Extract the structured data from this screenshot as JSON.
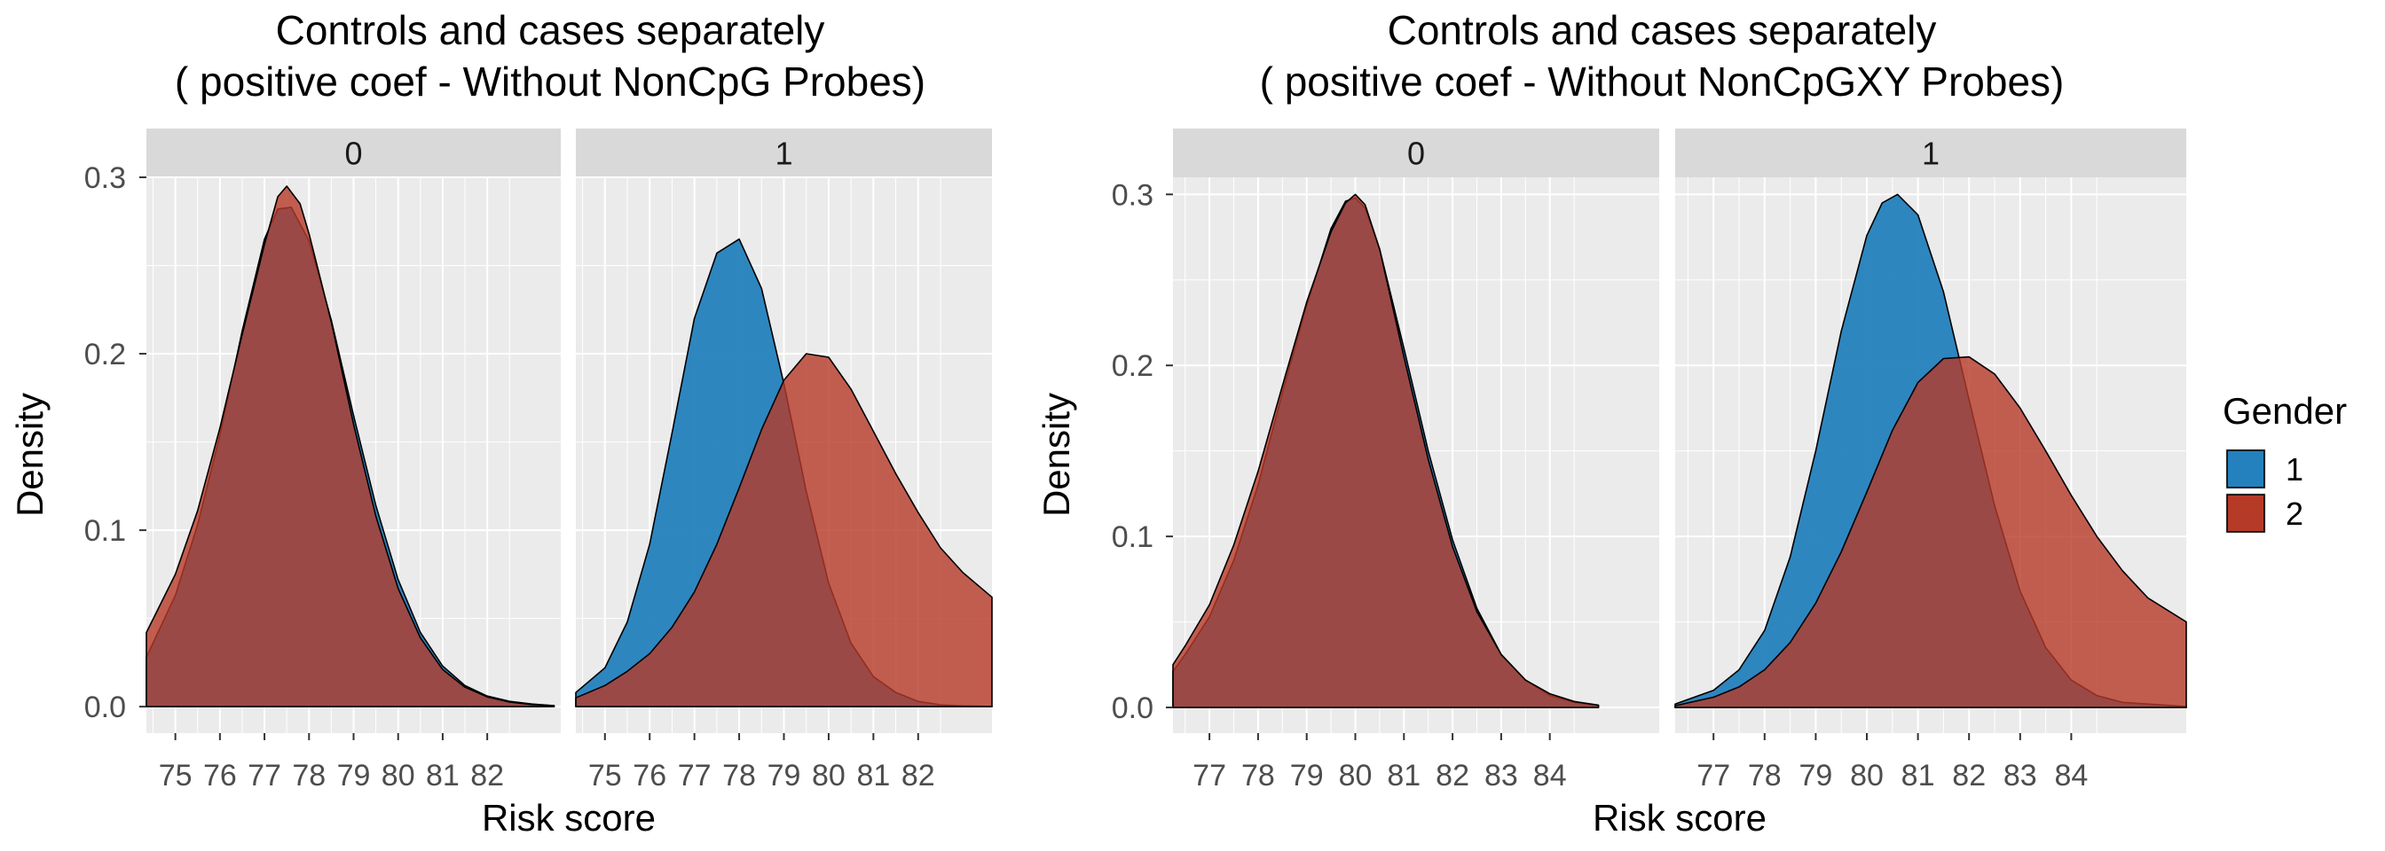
{
  "chart_data": [
    {
      "type": "area",
      "title": "Controls and cases separately\n( positive coef - Without NonCpG Probes)",
      "xlabel": "Risk score",
      "ylabel": "Density",
      "xlim": [
        74.35,
        83.65
      ],
      "ylim": [
        -0.015,
        0.3
      ],
      "x_ticks": [
        75,
        76,
        77,
        78,
        79,
        80,
        81,
        82
      ],
      "y_ticks": [
        0.0,
        0.1,
        0.2,
        0.3
      ],
      "y_tick_labels": [
        "0.0",
        "0.1",
        "0.2",
        "0.3"
      ],
      "grid": true,
      "facets": [
        {
          "label": "0",
          "series": [
            {
              "name": "1",
              "x": [
                74.35,
                75.0,
                75.5,
                76.0,
                76.5,
                77.0,
                77.3,
                77.6,
                78.0,
                78.5,
                79.0,
                79.5,
                80.0,
                80.5,
                81.0,
                81.5,
                82.0,
                82.5,
                83.0,
                83.5
              ],
              "y": [
                0.028,
                0.063,
                0.103,
                0.154,
                0.213,
                0.265,
                0.282,
                0.283,
                0.264,
                0.219,
                0.165,
                0.114,
                0.072,
                0.042,
                0.023,
                0.012,
                0.006,
                0.003,
                0.0015,
                0.0005
              ]
            },
            {
              "name": "2",
              "x": [
                74.35,
                75.0,
                75.5,
                76.0,
                76.5,
                77.0,
                77.3,
                77.5,
                77.8,
                78.0,
                78.5,
                79.0,
                79.5,
                80.0,
                80.5,
                81.0,
                81.5,
                82.0,
                82.5,
                83.0,
                83.5
              ],
              "y": [
                0.042,
                0.075,
                0.111,
                0.158,
                0.211,
                0.262,
                0.289,
                0.295,
                0.285,
                0.268,
                0.218,
                0.16,
                0.108,
                0.067,
                0.039,
                0.021,
                0.011,
                0.0055,
                0.0026,
                0.0012,
                0.0005
              ]
            }
          ]
        },
        {
          "label": "1",
          "series": [
            {
              "name": "1",
              "x": [
                74.35,
                75.0,
                75.5,
                76.0,
                76.5,
                77.0,
                77.5,
                78.0,
                78.5,
                79.0,
                79.5,
                80.0,
                80.5,
                81.0,
                81.5,
                82.0,
                82.5,
                83.0,
                83.65
              ],
              "y": [
                0.008,
                0.022,
                0.048,
                0.092,
                0.155,
                0.22,
                0.257,
                0.265,
                0.237,
                0.183,
                0.122,
                0.07,
                0.036,
                0.017,
                0.008,
                0.003,
                0.001,
                0.0004,
                0.0001
              ]
            },
            {
              "name": "2",
              "x": [
                74.35,
                75.0,
                75.5,
                76.0,
                76.5,
                77.0,
                77.5,
                78.0,
                78.5,
                79.0,
                79.5,
                80.0,
                80.5,
                81.0,
                81.5,
                82.0,
                82.5,
                83.0,
                83.65
              ],
              "y": [
                0.005,
                0.012,
                0.02,
                0.03,
                0.045,
                0.065,
                0.092,
                0.124,
                0.157,
                0.185,
                0.2,
                0.198,
                0.18,
                0.156,
                0.132,
                0.11,
                0.09,
                0.076,
                0.062
              ]
            }
          ]
        }
      ]
    },
    {
      "type": "area",
      "title": "Controls and cases separately\n( positive coef - Without NonCpGXY Probes)",
      "xlabel": "Risk score",
      "ylabel": "Density",
      "xlim": [
        76.25,
        86.25
      ],
      "ylim": [
        -0.015,
        0.31
      ],
      "x_ticks": [
        77,
        78,
        79,
        80,
        81,
        82,
        83,
        84
      ],
      "y_ticks": [
        0.0,
        0.1,
        0.2,
        0.3
      ],
      "y_tick_labels": [
        "0.0",
        "0.1",
        "0.2",
        "0.3"
      ],
      "grid": true,
      "facets": [
        {
          "label": "0",
          "series": [
            {
              "name": "1",
              "x": [
                76.25,
                76.5,
                77.0,
                77.5,
                78.0,
                78.5,
                79.0,
                79.5,
                79.8,
                80.0,
                80.2,
                80.5,
                81.0,
                81.5,
                82.0,
                82.5,
                83.0,
                83.5,
                84.0,
                84.5,
                85.0
              ],
              "y": [
                0.021,
                0.031,
                0.053,
                0.086,
                0.13,
                0.184,
                0.235,
                0.28,
                0.296,
                0.298,
                0.292,
                0.268,
                0.21,
                0.15,
                0.098,
                0.058,
                0.031,
                0.016,
                0.007,
                0.003,
                0.0011
              ]
            },
            {
              "name": "2",
              "x": [
                76.25,
                76.5,
                77.0,
                77.5,
                78.0,
                78.5,
                79.0,
                79.5,
                79.8,
                80.0,
                80.2,
                80.5,
                81.0,
                81.5,
                82.0,
                82.5,
                83.0,
                83.5,
                84.0,
                84.5,
                85.0
              ],
              "y": [
                0.025,
                0.036,
                0.06,
                0.095,
                0.138,
                0.188,
                0.237,
                0.278,
                0.295,
                0.3,
                0.294,
                0.268,
                0.205,
                0.145,
                0.094,
                0.056,
                0.031,
                0.016,
                0.008,
                0.0035,
                0.0014
              ]
            }
          ]
        },
        {
          "label": "1",
          "series": [
            {
              "name": "1",
              "x": [
                76.25,
                77.0,
                77.5,
                78.0,
                78.5,
                79.0,
                79.5,
                80.0,
                80.3,
                80.6,
                81.0,
                81.5,
                82.0,
                82.5,
                83.0,
                83.5,
                84.0,
                84.5,
                85.0,
                86.25
              ],
              "y": [
                0.002,
                0.01,
                0.022,
                0.045,
                0.088,
                0.15,
                0.22,
                0.276,
                0.295,
                0.3,
                0.288,
                0.243,
                0.18,
                0.118,
                0.068,
                0.035,
                0.016,
                0.007,
                0.003,
                0.0005
              ]
            },
            {
              "name": "2",
              "x": [
                76.25,
                77.0,
                77.5,
                78.0,
                78.5,
                79.0,
                79.5,
                80.0,
                80.5,
                81.0,
                81.5,
                82.0,
                82.5,
                83.0,
                83.5,
                84.0,
                84.5,
                85.0,
                85.5,
                86.25
              ],
              "y": [
                0.001,
                0.006,
                0.012,
                0.022,
                0.038,
                0.061,
                0.091,
                0.126,
                0.162,
                0.19,
                0.204,
                0.205,
                0.195,
                0.175,
                0.15,
                0.124,
                0.1,
                0.08,
                0.064,
                0.05
              ]
            }
          ]
        }
      ]
    }
  ],
  "legend": {
    "title": "Gender",
    "items": [
      {
        "label": "1",
        "color": "#2481BD"
      },
      {
        "label": "2",
        "color": "#B63A28"
      }
    ]
  },
  "colors": {
    "series_1_fill": "#2481BD",
    "series_2_fill": "#B63A28",
    "panel_bg": "#EBEBEB",
    "strip_bg": "#D9D9D9",
    "grid": "#FFFFFF"
  }
}
